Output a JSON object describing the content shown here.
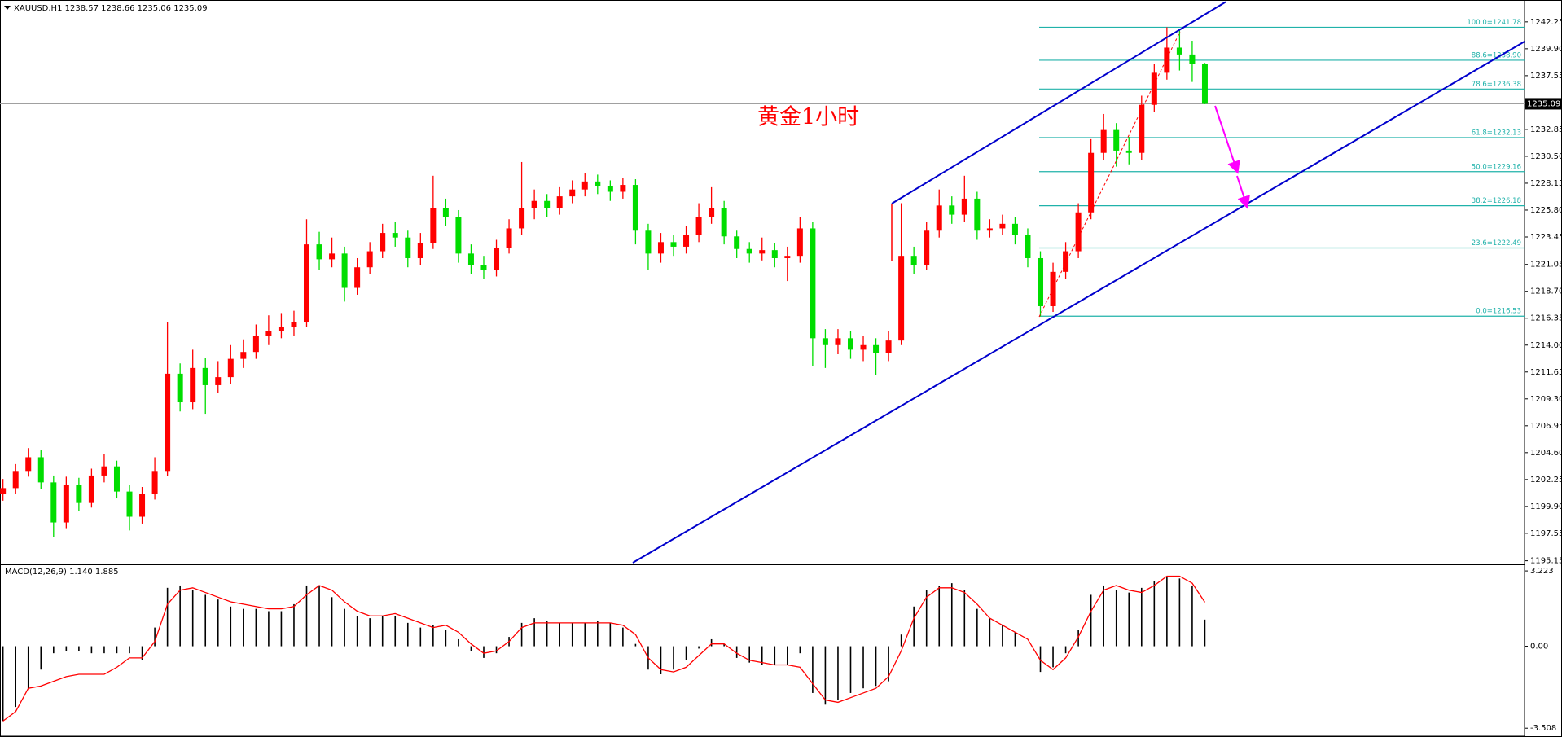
{
  "chart_data": [
    {
      "type": "candlestick",
      "title": "XAUUSD,H1  1238.57 1238.66 1235.06 1235.09",
      "annotation": "黄金1小时",
      "up_color": "#ff0000",
      "down_color": "#00dd00",
      "fib_color": "#20b2aa",
      "ylim": [
        1194.98,
        1243.99
      ],
      "yticks": [
        1242.25,
        {
          "value": 1239.9,
          "label": "1239.90"
        },
        1237.55,
        1232.85,
        {
          "value": 1230.5,
          "label": "1230.50"
        },
        1228.15,
        {
          "value": 1225.8,
          "label": "1225.80"
        },
        1223.45,
        1221.05,
        {
          "value": 1218.7,
          "label": "1218.70"
        },
        1216.35,
        {
          "value": 1214,
          "label": "1214.00"
        },
        1211.65,
        {
          "value": 1209.3,
          "label": "1209.30"
        },
        1206.95,
        {
          "value": 1204.6,
          "label": "1204.60"
        },
        1202.25,
        {
          "value": 1199.9,
          "label": "1199.90"
        },
        1197.55,
        1195.15
      ],
      "last_price": 1235.09,
      "fibonacci": [
        {
          "label": "100.0=1241.78",
          "value": 1241.78
        },
        {
          "label": "88.6=1238.90",
          "value": 1238.9
        },
        {
          "label": "78.6=1236.38",
          "value": 1236.38
        },
        {
          "label": "61.8=1232.13",
          "value": 1232.13
        },
        {
          "label": "50.0=1229.16",
          "value": 1229.16
        },
        {
          "label": "38.2=1226.18",
          "value": 1226.18
        },
        {
          "label": "23.6=1222.49",
          "value": 1222.49
        },
        {
          "label": "0.0=1216.53",
          "value": 1216.53
        }
      ],
      "candles": [
        [
          1201.0,
          1202.3,
          1200.4,
          1201.5
        ],
        [
          1201.5,
          1203.6,
          1201.0,
          1203.0
        ],
        [
          1203.0,
          1205.0,
          1202.5,
          1204.2
        ],
        [
          1204.2,
          1204.8,
          1201.4,
          1202.0
        ],
        [
          1202.0,
          1202.6,
          1197.2,
          1198.5
        ],
        [
          1198.5,
          1202.5,
          1198.0,
          1201.8
        ],
        [
          1201.8,
          1202.4,
          1199.5,
          1200.2
        ],
        [
          1200.2,
          1203.2,
          1199.8,
          1202.6
        ],
        [
          1202.6,
          1204.5,
          1202.0,
          1203.4
        ],
        [
          1203.4,
          1203.9,
          1200.6,
          1201.2
        ],
        [
          1201.2,
          1201.8,
          1197.8,
          1199.0
        ],
        [
          1199.0,
          1201.6,
          1198.4,
          1201.0
        ],
        [
          1201.0,
          1204.2,
          1200.5,
          1203.0
        ],
        [
          1203.0,
          1216.0,
          1202.6,
          1211.5
        ],
        [
          1211.5,
          1212.4,
          1208.2,
          1209.0
        ],
        [
          1209.0,
          1213.6,
          1208.4,
          1212.0
        ],
        [
          1212.0,
          1212.9,
          1208.0,
          1210.5
        ],
        [
          1210.5,
          1212.6,
          1209.8,
          1211.2
        ],
        [
          1211.2,
          1214.0,
          1210.6,
          1212.8
        ],
        [
          1212.8,
          1214.5,
          1212.0,
          1213.4
        ],
        [
          1213.4,
          1215.8,
          1212.8,
          1214.8
        ],
        [
          1214.8,
          1216.6,
          1214.0,
          1215.2
        ],
        [
          1215.2,
          1216.8,
          1214.6,
          1215.6
        ],
        [
          1215.6,
          1217.0,
          1214.8,
          1216.0
        ],
        [
          1216.0,
          1225.0,
          1215.6,
          1222.8
        ],
        [
          1222.8,
          1223.9,
          1220.6,
          1221.5
        ],
        [
          1221.5,
          1223.4,
          1220.8,
          1222.0
        ],
        [
          1222.0,
          1222.6,
          1217.8,
          1219.0
        ],
        [
          1219.0,
          1221.6,
          1218.4,
          1220.8
        ],
        [
          1220.8,
          1223.0,
          1220.2,
          1222.2
        ],
        [
          1222.2,
          1224.6,
          1221.6,
          1223.8
        ],
        [
          1223.8,
          1224.8,
          1222.6,
          1223.4
        ],
        [
          1223.4,
          1224.0,
          1220.8,
          1221.6
        ],
        [
          1221.6,
          1223.8,
          1221.0,
          1222.9
        ],
        [
          1222.9,
          1228.8,
          1222.4,
          1226.0
        ],
        [
          1226.0,
          1226.8,
          1224.4,
          1225.2
        ],
        [
          1225.2,
          1225.8,
          1221.2,
          1222.0
        ],
        [
          1222.0,
          1222.8,
          1220.2,
          1221.0
        ],
        [
          1221.0,
          1221.8,
          1219.8,
          1220.6
        ],
        [
          1220.6,
          1223.2,
          1220.0,
          1222.5
        ],
        [
          1222.5,
          1225.0,
          1222.0,
          1224.2
        ],
        [
          1224.2,
          1230.0,
          1223.6,
          1226.0
        ],
        [
          1226.0,
          1227.6,
          1225.0,
          1226.6
        ],
        [
          1226.6,
          1227.2,
          1225.2,
          1226.0
        ],
        [
          1226.0,
          1227.8,
          1225.4,
          1227.0
        ],
        [
          1227.0,
          1228.4,
          1226.4,
          1227.6
        ],
        [
          1227.6,
          1229.0,
          1227.0,
          1228.3
        ],
        [
          1228.3,
          1228.9,
          1227.2,
          1227.9
        ],
        [
          1227.9,
          1228.4,
          1226.6,
          1227.4
        ],
        [
          1227.4,
          1228.6,
          1226.8,
          1228.0
        ],
        [
          1228.0,
          1228.5,
          1222.8,
          1224.0
        ],
        [
          1224.0,
          1224.6,
          1220.6,
          1222.0
        ],
        [
          1222.0,
          1223.8,
          1221.2,
          1223.0
        ],
        [
          1223.0,
          1223.6,
          1221.8,
          1222.6
        ],
        [
          1222.6,
          1224.4,
          1222.0,
          1223.6
        ],
        [
          1223.6,
          1226.4,
          1223.0,
          1225.2
        ],
        [
          1225.2,
          1227.8,
          1224.6,
          1226.0
        ],
        [
          1226.0,
          1226.6,
          1222.8,
          1223.5
        ],
        [
          1223.5,
          1224.0,
          1221.6,
          1222.4
        ],
        [
          1222.4,
          1223.0,
          1221.2,
          1222.0
        ],
        [
          1222.0,
          1223.4,
          1221.4,
          1222.3
        ],
        [
          1222.3,
          1222.9,
          1220.8,
          1221.6
        ],
        [
          1221.6,
          1222.6,
          1219.6,
          1221.8
        ],
        [
          1221.8,
          1225.2,
          1221.2,
          1224.2
        ],
        [
          1224.2,
          1224.8,
          1212.2,
          1214.6
        ],
        [
          1214.6,
          1215.4,
          1212.0,
          1214.0
        ],
        [
          1214.0,
          1215.4,
          1213.2,
          1214.6
        ],
        [
          1214.6,
          1215.2,
          1212.8,
          1213.6
        ],
        [
          1213.6,
          1214.8,
          1212.6,
          1214.0
        ],
        [
          1214.0,
          1214.6,
          1211.4,
          1213.3
        ],
        [
          1213.3,
          1215.2,
          1212.6,
          1214.4
        ],
        [
          1214.4,
          1226.4,
          1214.0,
          1221.8
        ],
        [
          1221.8,
          1222.6,
          1220.2,
          1221.0
        ],
        [
          1221.0,
          1224.8,
          1220.6,
          1224.0
        ],
        [
          1224.0,
          1227.6,
          1223.4,
          1226.2
        ],
        [
          1226.2,
          1227.0,
          1224.6,
          1225.4
        ],
        [
          1225.4,
          1228.8,
          1224.8,
          1226.8
        ],
        [
          1226.8,
          1227.4,
          1223.2,
          1224.0
        ],
        [
          1224.0,
          1225.0,
          1223.4,
          1224.2
        ],
        [
          1224.2,
          1225.4,
          1223.6,
          1224.6
        ],
        [
          1224.6,
          1225.2,
          1222.8,
          1223.6
        ],
        [
          1223.6,
          1224.2,
          1220.8,
          1221.6
        ],
        [
          1221.6,
          1222.2,
          1216.5,
          1217.4
        ],
        [
          1217.4,
          1221.2,
          1216.9,
          1220.4
        ],
        [
          1220.4,
          1223.0,
          1219.8,
          1222.2
        ],
        [
          1222.2,
          1226.4,
          1221.6,
          1225.6
        ],
        [
          1225.6,
          1232.0,
          1225.0,
          1230.8
        ],
        [
          1230.8,
          1234.2,
          1230.2,
          1232.8
        ],
        [
          1232.8,
          1233.4,
          1229.6,
          1231.0
        ],
        [
          1231.0,
          1232.2,
          1229.8,
          1230.8
        ],
        [
          1230.8,
          1235.8,
          1230.2,
          1235.0
        ],
        [
          1235.0,
          1238.6,
          1234.4,
          1237.8
        ],
        [
          1237.8,
          1241.78,
          1237.2,
          1240.0
        ],
        [
          1240.0,
          1241.6,
          1238.0,
          1239.4
        ],
        [
          1239.4,
          1240.6,
          1237.0,
          1238.6
        ],
        [
          1238.57,
          1238.66,
          1235.06,
          1235.09
        ]
      ]
    },
    {
      "type": "macd",
      "title": "MACD(12,26,9) 1.140 1.885",
      "hist_color": "#000000",
      "signal_color": "#ff0000",
      "ylim": [
        -3.762,
        3.435
      ],
      "yticks": [
        3.223,
        {
          "value": 0,
          "label": "0.00"
        },
        -3.508
      ],
      "histogram": [
        -3.2,
        -2.6,
        -1.8,
        -1.0,
        -0.3,
        -0.2,
        -0.2,
        -0.3,
        -0.3,
        -0.3,
        -0.3,
        -0.6,
        0.8,
        2.5,
        2.6,
        2.4,
        2.2,
        2.0,
        1.7,
        1.6,
        1.6,
        1.5,
        1.5,
        1.8,
        2.6,
        2.6,
        2.1,
        1.6,
        1.3,
        1.2,
        1.3,
        1.3,
        1.0,
        0.8,
        0.9,
        0.7,
        0.3,
        -0.2,
        -0.5,
        -0.3,
        0.4,
        1.0,
        1.2,
        1.1,
        1.0,
        1.0,
        1.0,
        1.1,
        1.0,
        0.8,
        0.1,
        -1.0,
        -1.2,
        -1.0,
        -0.6,
        -0.1,
        0.3,
        0.1,
        -0.5,
        -0.7,
        -0.8,
        -0.8,
        -0.8,
        -0.3,
        -2.0,
        -2.5,
        -2.3,
        -2.0,
        -1.8,
        -1.7,
        -1.5,
        0.5,
        1.7,
        2.4,
        2.6,
        2.7,
        2.4,
        1.6,
        1.2,
        0.9,
        0.6,
        0.0,
        -1.1,
        -0.9,
        -0.3,
        0.7,
        2.2,
        2.6,
        2.4,
        2.3,
        2.5,
        2.8,
        3.0,
        2.9,
        2.6,
        1.14
      ],
      "signal": [
        -3.2,
        -2.8,
        -1.8,
        -1.7,
        -1.5,
        -1.3,
        -1.2,
        -1.2,
        -1.2,
        -0.9,
        -0.5,
        -0.5,
        0.2,
        1.8,
        2.4,
        2.5,
        2.3,
        2.1,
        1.9,
        1.8,
        1.7,
        1.6,
        1.6,
        1.7,
        2.2,
        2.6,
        2.4,
        1.9,
        1.5,
        1.3,
        1.3,
        1.4,
        1.2,
        1.0,
        0.8,
        0.9,
        0.6,
        0.1,
        -0.3,
        -0.2,
        0.2,
        0.8,
        1.0,
        1.0,
        1.0,
        1.0,
        1.0,
        1.0,
        1.0,
        0.9,
        0.5,
        -0.5,
        -1.0,
        -1.1,
        -0.9,
        -0.4,
        0.1,
        0.1,
        -0.3,
        -0.6,
        -0.7,
        -0.8,
        -0.8,
        -0.9,
        -1.6,
        -2.3,
        -2.4,
        -2.2,
        -2.0,
        -1.8,
        -1.3,
        -0.2,
        1.2,
        2.1,
        2.5,
        2.5,
        2.3,
        1.8,
        1.2,
        0.9,
        0.6,
        0.3,
        -0.6,
        -1.0,
        -0.5,
        0.4,
        1.5,
        2.4,
        2.6,
        2.4,
        2.3,
        2.6,
        3.0,
        3.0,
        2.7,
        1.885
      ]
    }
  ]
}
